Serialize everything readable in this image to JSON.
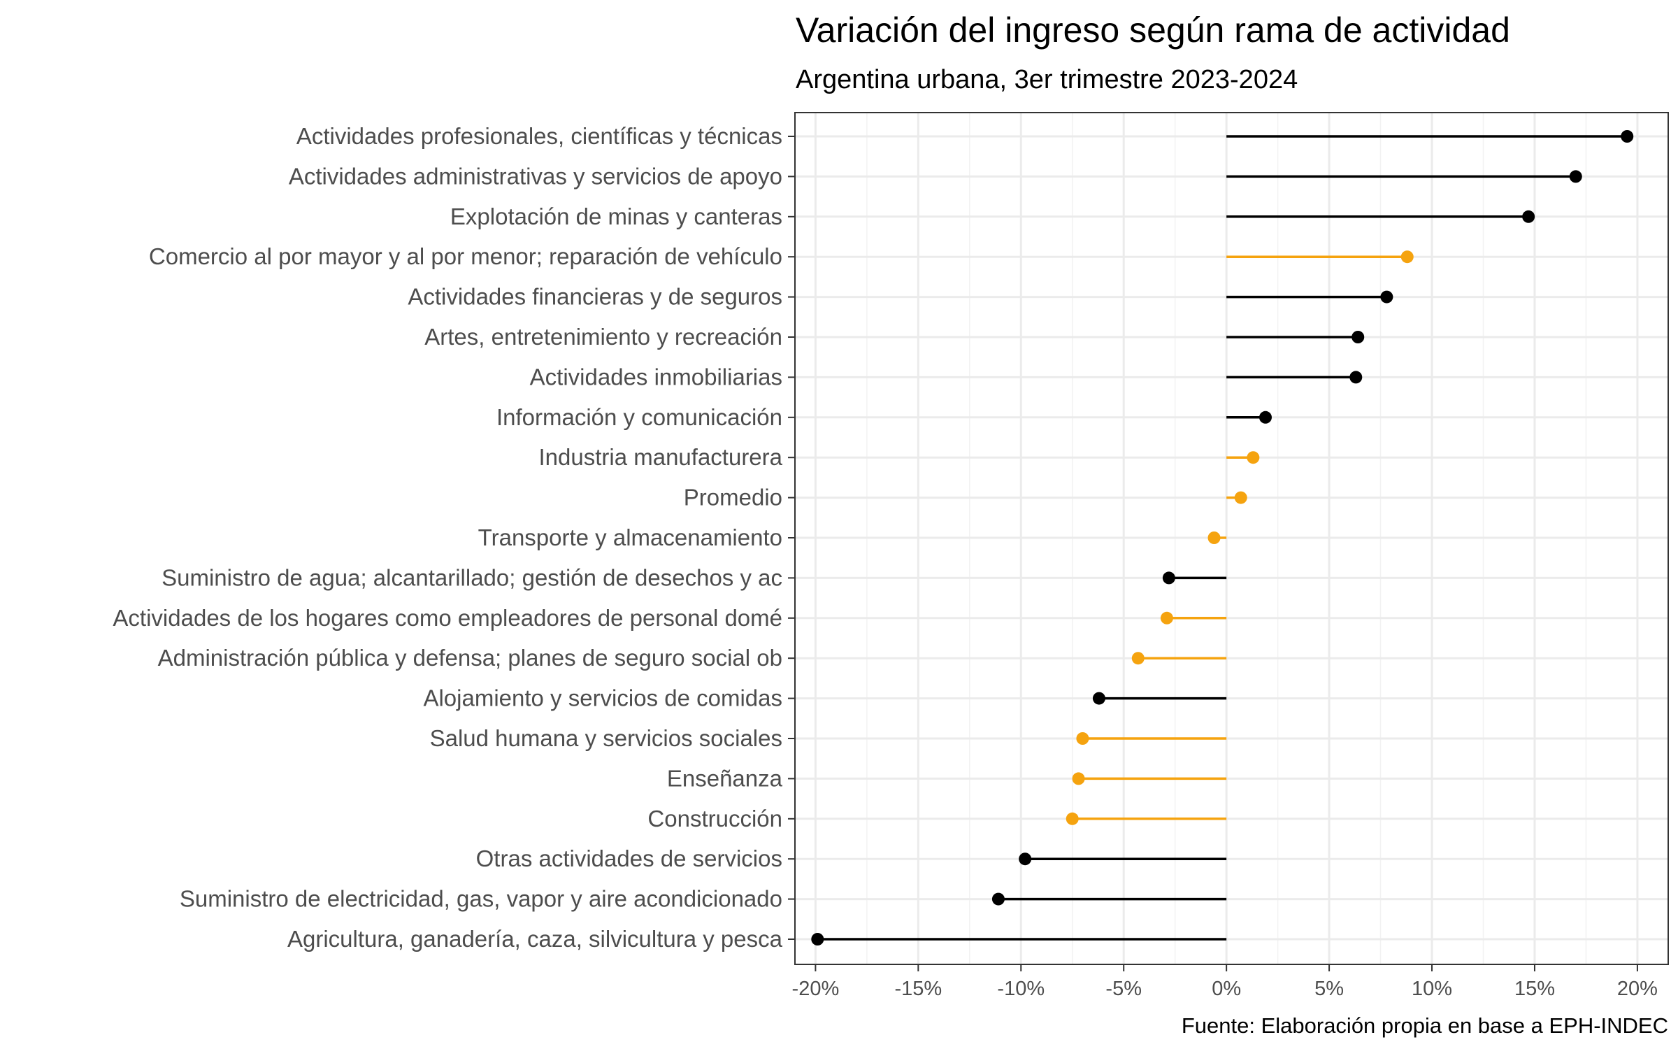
{
  "chart_data": {
    "type": "lollipop",
    "title": "Variación del ingreso según rama de actividad",
    "subtitle": "Argentina urbana, 3er trimestre 2023-2024",
    "caption": "Fuente: Elaboración propia en base a EPH-INDEC",
    "xlim": [
      -0.21,
      0.215
    ],
    "x_ticks": [
      -0.2,
      -0.15,
      -0.1,
      -0.05,
      0,
      0.05,
      0.1,
      0.15,
      0.2
    ],
    "x_tick_labels": [
      "-20%",
      "-15%",
      "-10%",
      "-5%",
      "0%",
      "5%",
      "10%",
      "15%",
      "20%"
    ],
    "grid": true,
    "colors": {
      "highlight": "#F5A30F",
      "default": "#000000"
    },
    "categories": [
      "Actividades profesionales, científicas y técnicas",
      "Actividades administrativas y servicios de apoyo",
      "Explotación de minas y canteras",
      "Comercio al por mayor y al por menor; reparación de vehículo",
      "Actividades financieras y de seguros",
      "Artes, entretenimiento y recreación",
      "Actividades inmobiliarias",
      "Información y comunicación",
      "Industria manufacturera",
      "Promedio",
      "Transporte y almacenamiento",
      "Suministro de agua; alcantarillado; gestión de desechos y ac",
      "Actividades de los hogares como empleadores de personal domé",
      "Administración pública y defensa; planes de seguro social ob",
      "Alojamiento y servicios de comidas",
      "Salud humana y servicios sociales",
      "Enseñanza",
      "Construcción",
      "Otras actividades de servicios",
      "Suministro de electricidad, gas, vapor y aire acondicionado",
      "Agricultura, ganadería, caza, silvicultura y pesca"
    ],
    "values": [
      0.195,
      0.17,
      0.147,
      0.088,
      0.078,
      0.064,
      0.063,
      0.019,
      0.013,
      0.007,
      -0.006,
      -0.028,
      -0.029,
      -0.043,
      -0.062,
      -0.07,
      -0.072,
      -0.075,
      -0.098,
      -0.111,
      -0.199
    ],
    "highlighted": [
      false,
      false,
      false,
      true,
      false,
      false,
      false,
      false,
      true,
      true,
      true,
      false,
      true,
      true,
      false,
      true,
      true,
      true,
      false,
      false,
      false
    ]
  }
}
